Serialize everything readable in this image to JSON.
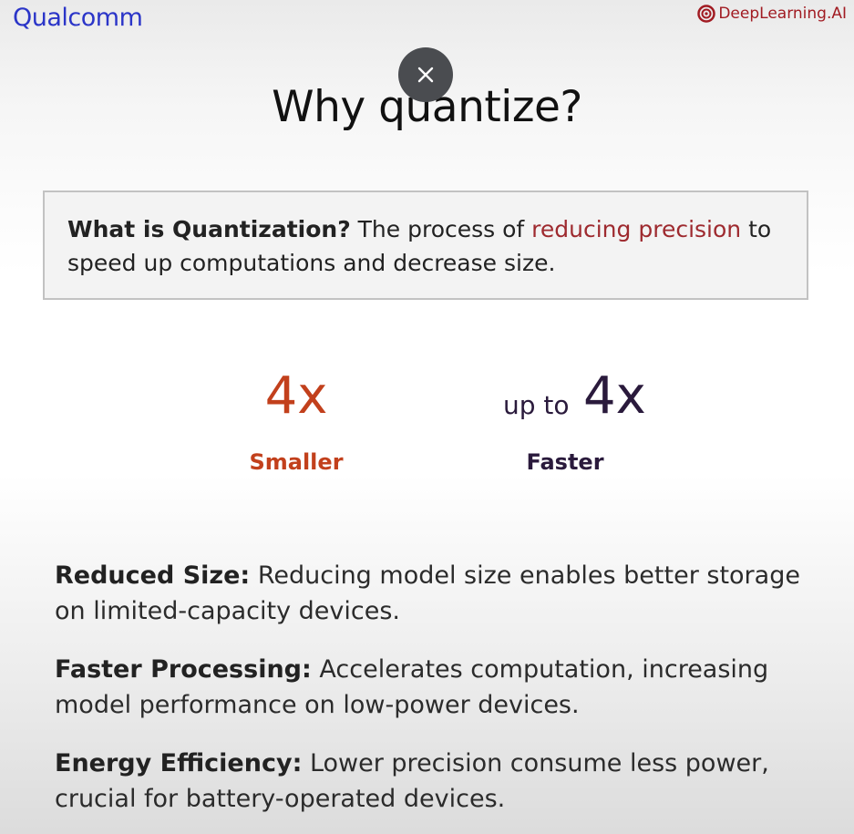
{
  "brand": {
    "left_logo": "Qualcomm",
    "right_logo": "DeepLearning.AI",
    "right_logo_color": "#a11b22",
    "left_logo_color": "#2b35c8"
  },
  "overlay": {
    "close_icon": "close-icon"
  },
  "slide": {
    "title": "Why quantize?",
    "definition": {
      "term": "What is Quantization?",
      "text_before": " The process of ",
      "highlight": "reducing precision",
      "text_after": " to speed up computations and decrease size."
    },
    "stats": [
      {
        "big": "4x",
        "label": "Smaller",
        "color": "#c2401c"
      },
      {
        "prefix": "up to",
        "big": "4x",
        "label": "Faster",
        "color": "#2a1a3c"
      }
    ],
    "benefits": [
      {
        "heading": "Reduced Size:",
        "text": " Reducing model size enables better storage on limited-capacity devices."
      },
      {
        "heading": "Faster Processing:",
        "text": " Accelerates computation, increasing model performance on low-power devices."
      },
      {
        "heading": "Energy Efficiency:",
        "text": " Lower precision consume less power, crucial for battery-operated devices."
      }
    ]
  }
}
